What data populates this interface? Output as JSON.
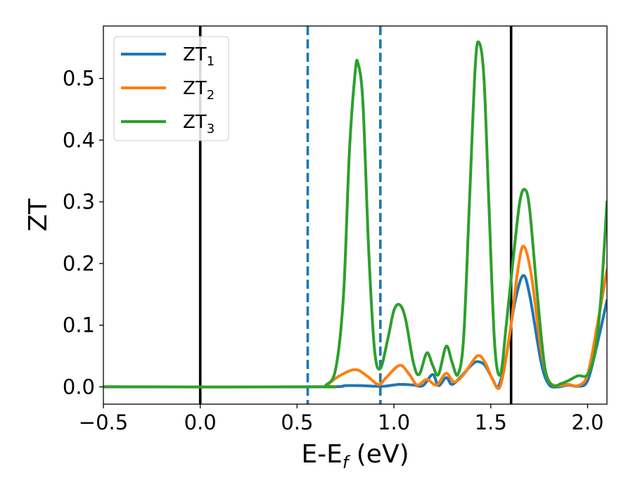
{
  "chart_data": {
    "type": "line",
    "xlabel_main": "E-E",
    "xlabel_sub": "f",
    "xlabel_unit": " (eV)",
    "ylabel": "ZT",
    "xlim": [
      -0.5,
      2.1
    ],
    "ylim": [
      -0.028,
      0.585
    ],
    "xticks": [
      -0.5,
      0.0,
      0.5,
      1.0,
      1.5,
      2.0
    ],
    "xtick_labels": [
      "−0.5",
      "0.0",
      "0.5",
      "1.0",
      "1.5",
      "2.0"
    ],
    "yticks": [
      0.0,
      0.1,
      0.2,
      0.3,
      0.4,
      0.5
    ],
    "ytick_labels": [
      "0.0",
      "0.1",
      "0.2",
      "0.3",
      "0.4",
      "0.5"
    ],
    "grid": false,
    "legend_position": "top-left",
    "vertical_lines": [
      {
        "x": 0.0,
        "color": "#000000",
        "style": "solid"
      },
      {
        "x": 0.555,
        "color": "#1f77b4",
        "style": "dashed"
      },
      {
        "x": 0.93,
        "color": "#1f77b4",
        "style": "dashed"
      },
      {
        "x": 1.605,
        "color": "#000000",
        "style": "solid"
      }
    ],
    "series": [
      {
        "name_main": "ZT",
        "name_sub": "1",
        "color": "#1f77b4",
        "points": [
          [
            -0.5,
            0.0
          ],
          [
            0.6,
            0.0
          ],
          [
            0.75,
            0.002
          ],
          [
            0.82,
            0.002
          ],
          [
            0.9,
            0.001
          ],
          [
            0.95,
            0.001
          ],
          [
            1.03,
            0.004
          ],
          [
            1.1,
            0.003
          ],
          [
            1.15,
            0.002
          ],
          [
            1.2,
            0.02
          ],
          [
            1.23,
            0.002
          ],
          [
            1.27,
            0.015
          ],
          [
            1.3,
            0.004
          ],
          [
            1.35,
            0.018
          ],
          [
            1.4,
            0.035
          ],
          [
            1.43,
            0.041
          ],
          [
            1.47,
            0.035
          ],
          [
            1.51,
            0.012
          ],
          [
            1.54,
            0.001
          ],
          [
            1.58,
            0.05
          ],
          [
            1.62,
            0.13
          ],
          [
            1.665,
            0.18
          ],
          [
            1.7,
            0.15
          ],
          [
            1.76,
            0.04
          ],
          [
            1.8,
            0.004
          ],
          [
            1.85,
            0.0
          ],
          [
            1.9,
            0.003
          ],
          [
            1.95,
            0.001
          ],
          [
            2.0,
            0.01
          ],
          [
            2.05,
            0.07
          ],
          [
            2.1,
            0.14
          ]
        ]
      },
      {
        "name_main": "ZT",
        "name_sub": "2",
        "color": "#ff7f0e",
        "points": [
          [
            -0.5,
            0.0
          ],
          [
            0.6,
            0.0
          ],
          [
            0.65,
            0.003
          ],
          [
            0.72,
            0.018
          ],
          [
            0.8,
            0.028
          ],
          [
            0.86,
            0.018
          ],
          [
            0.92,
            0.004
          ],
          [
            0.96,
            0.015
          ],
          [
            1.03,
            0.035
          ],
          [
            1.08,
            0.02
          ],
          [
            1.12,
            0.003
          ],
          [
            1.17,
            0.012
          ],
          [
            1.22,
            0.003
          ],
          [
            1.27,
            0.022
          ],
          [
            1.31,
            0.008
          ],
          [
            1.36,
            0.02
          ],
          [
            1.43,
            0.05
          ],
          [
            1.47,
            0.04
          ],
          [
            1.51,
            0.012
          ],
          [
            1.55,
            0.002
          ],
          [
            1.6,
            0.09
          ],
          [
            1.64,
            0.19
          ],
          [
            1.67,
            0.228
          ],
          [
            1.71,
            0.18
          ],
          [
            1.76,
            0.06
          ],
          [
            1.8,
            0.01
          ],
          [
            1.85,
            0.002
          ],
          [
            1.9,
            0.004
          ],
          [
            1.95,
            0.002
          ],
          [
            2.0,
            0.02
          ],
          [
            2.05,
            0.1
          ],
          [
            2.1,
            0.19
          ]
        ]
      },
      {
        "name_main": "ZT",
        "name_sub": "3",
        "color": "#2ca02c",
        "points": [
          [
            -0.5,
            0.0
          ],
          [
            0.6,
            0.0
          ],
          [
            0.65,
            0.003
          ],
          [
            0.7,
            0.03
          ],
          [
            0.74,
            0.15
          ],
          [
            0.77,
            0.38
          ],
          [
            0.8,
            0.51
          ],
          [
            0.815,
            0.524
          ],
          [
            0.84,
            0.46
          ],
          [
            0.87,
            0.22
          ],
          [
            0.9,
            0.06
          ],
          [
            0.93,
            0.03
          ],
          [
            0.97,
            0.08
          ],
          [
            1.0,
            0.124
          ],
          [
            1.03,
            0.133
          ],
          [
            1.06,
            0.11
          ],
          [
            1.1,
            0.04
          ],
          [
            1.13,
            0.02
          ],
          [
            1.17,
            0.055
          ],
          [
            1.2,
            0.035
          ],
          [
            1.23,
            0.02
          ],
          [
            1.27,
            0.066
          ],
          [
            1.3,
            0.04
          ],
          [
            1.33,
            0.02
          ],
          [
            1.36,
            0.08
          ],
          [
            1.39,
            0.3
          ],
          [
            1.42,
            0.52
          ],
          [
            1.44,
            0.558
          ],
          [
            1.465,
            0.5
          ],
          [
            1.49,
            0.3
          ],
          [
            1.52,
            0.07
          ],
          [
            1.55,
            0.02
          ],
          [
            1.58,
            0.1
          ],
          [
            1.62,
            0.22
          ],
          [
            1.65,
            0.3
          ],
          [
            1.675,
            0.32
          ],
          [
            1.7,
            0.29
          ],
          [
            1.74,
            0.15
          ],
          [
            1.78,
            0.03
          ],
          [
            1.82,
            0.002
          ],
          [
            1.86,
            0.005
          ],
          [
            1.9,
            0.01
          ],
          [
            1.95,
            0.018
          ],
          [
            2.0,
            0.02
          ],
          [
            2.04,
            0.06
          ],
          [
            2.07,
            0.15
          ],
          [
            2.1,
            0.3
          ]
        ]
      }
    ]
  }
}
